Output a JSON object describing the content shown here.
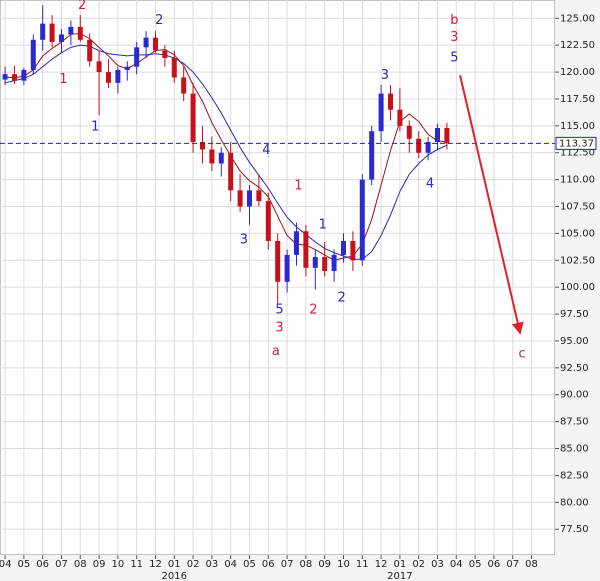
{
  "chart_data": {
    "type": "candlestick",
    "x": [
      0,
      0.5,
      1,
      1.5,
      2,
      2.5,
      3,
      3.5,
      4,
      4.5,
      5,
      5.5,
      6,
      6.5,
      7,
      7.5,
      8,
      8.5,
      9,
      9.5,
      10,
      10.5,
      11,
      11.5,
      12,
      12.5,
      13,
      13.5,
      14,
      14.5,
      15,
      15.5,
      16,
      16.5,
      17,
      17.5,
      18,
      18.5,
      19,
      19.5,
      20,
      20.5,
      21,
      21.5,
      22,
      22.5,
      23,
      23.5
    ],
    "open": [
      119.3,
      119.8,
      119.2,
      120.2,
      123.0,
      124.5,
      122.8,
      123.5,
      124.2,
      123.0,
      121.0,
      120.0,
      119.0,
      120.2,
      120.5,
      122.3,
      123.2,
      122.0,
      121.3,
      119.5,
      118.0,
      113.5,
      112.8,
      111.5,
      112.5,
      109.0,
      107.5,
      109.0,
      108.0,
      104.3,
      100.5,
      103.0,
      105.2,
      101.8,
      102.8,
      101.5,
      103.0,
      104.3,
      102.5,
      110.0,
      114.5,
      118.0,
      116.5,
      115.0,
      113.8,
      112.5,
      113.5,
      114.8
    ],
    "high": [
      120.5,
      120.6,
      120.4,
      123.5,
      126.2,
      125.3,
      124.0,
      124.8,
      125.3,
      123.6,
      122.0,
      121.2,
      120.5,
      121.0,
      122.8,
      123.8,
      123.8,
      122.5,
      122.0,
      120.5,
      119.0,
      115.0,
      114.0,
      113.0,
      113.5,
      110.5,
      109.5,
      110.5,
      108.8,
      105.0,
      103.5,
      106.0,
      105.8,
      103.5,
      104.2,
      103.5,
      105.0,
      105.2,
      110.5,
      115.0,
      118.8,
      118.8,
      118.5,
      115.5,
      114.5,
      114.0,
      115.2,
      115.3
    ],
    "low": [
      118.8,
      118.9,
      118.8,
      119.8,
      122.0,
      122.3,
      121.8,
      122.5,
      122.8,
      120.5,
      116.0,
      118.5,
      118.0,
      119.2,
      119.8,
      121.3,
      121.8,
      120.5,
      119.0,
      117.3,
      112.5,
      111.5,
      110.8,
      110.3,
      108.0,
      107.0,
      105.8,
      107.5,
      103.5,
      98.5,
      99.5,
      102.0,
      101.0,
      99.8,
      101.0,
      100.5,
      102.3,
      101.5,
      102.0,
      109.5,
      113.5,
      115.5,
      114.5,
      112.5,
      112.0,
      111.8,
      112.8,
      112.8
    ],
    "close": [
      119.8,
      119.2,
      120.2,
      123.0,
      124.5,
      122.8,
      123.5,
      124.2,
      123.0,
      121.0,
      120.0,
      119.0,
      120.2,
      120.5,
      122.3,
      123.2,
      122.0,
      121.3,
      119.5,
      118.0,
      113.5,
      112.8,
      111.5,
      112.5,
      109.0,
      107.5,
      109.0,
      108.0,
      104.3,
      100.5,
      103.0,
      105.2,
      101.8,
      102.8,
      101.5,
      103.0,
      104.3,
      102.5,
      110.0,
      114.5,
      118.0,
      116.5,
      115.0,
      113.8,
      112.5,
      113.5,
      114.8,
      113.37
    ],
    "up_color": "#2a2ad0",
    "down_color": "#c8101a",
    "ma": [
      {
        "color": "#a01018",
        "values": [
          119.5,
          119.5,
          119.6,
          120.2,
          121.5,
          122.2,
          122.8,
          123.5,
          123.6,
          123.1,
          122.3,
          121.5,
          120.6,
          120.3,
          120.8,
          121.4,
          122.0,
          122.1,
          121.6,
          120.6,
          118.8,
          117.3,
          115.3,
          113.7,
          112.2,
          110.8,
          109.9,
          109.3,
          108.4,
          106.6,
          104.8,
          104.0,
          103.9,
          103.5,
          103.0,
          102.5,
          102.7,
          102.9,
          104.0,
          106.3,
          109.5,
          112.7,
          115.4,
          116.1,
          115.4,
          114.2,
          113.6,
          113.5
        ]
      },
      {
        "color": "#2a2ab8",
        "values": [
          119.0,
          119.2,
          119.4,
          119.8,
          120.5,
          121.2,
          121.8,
          122.3,
          122.5,
          122.4,
          122.0,
          121.7,
          121.6,
          121.5,
          121.6,
          121.6,
          121.7,
          121.6,
          121.3,
          120.8,
          120.0,
          118.9,
          117.6,
          116.2,
          114.6,
          113.0,
          111.6,
          110.4,
          109.2,
          107.8,
          106.5,
          105.6,
          104.9,
          104.2,
          103.6,
          103.2,
          102.9,
          102.6,
          102.6,
          103.3,
          104.8,
          106.7,
          108.9,
          110.5,
          111.5,
          112.3,
          112.8,
          113.2
        ]
      }
    ],
    "price_line": 113.37,
    "price_line_color": "#2020c0",
    "xlim": [
      -0.27,
      29.25
    ],
    "xticks": [
      {
        "value": 0,
        "label": "04"
      },
      {
        "value": 1,
        "label": "05"
      },
      {
        "value": 2,
        "label": "06"
      },
      {
        "value": 3,
        "label": "07"
      },
      {
        "value": 4,
        "label": "08"
      },
      {
        "value": 5,
        "label": "09"
      },
      {
        "value": 6,
        "label": "10"
      },
      {
        "value": 7,
        "label": "11"
      },
      {
        "value": 8,
        "label": "12"
      },
      {
        "value": 9,
        "label": "01"
      },
      {
        "value": 10,
        "label": "02"
      },
      {
        "value": 11,
        "label": "03"
      },
      {
        "value": 12,
        "label": "04"
      },
      {
        "value": 13,
        "label": "05"
      },
      {
        "value": 14,
        "label": "06"
      },
      {
        "value": 15,
        "label": "07"
      },
      {
        "value": 16,
        "label": "08"
      },
      {
        "value": 17,
        "label": "09"
      },
      {
        "value": 18,
        "label": "10"
      },
      {
        "value": 19,
        "label": "11"
      },
      {
        "value": 20,
        "label": "12"
      },
      {
        "value": 21,
        "label": "01"
      },
      {
        "value": 22,
        "label": "02"
      },
      {
        "value": 23,
        "label": "03"
      },
      {
        "value": 24,
        "label": "04"
      },
      {
        "value": 25,
        "label": "05"
      },
      {
        "value": 26,
        "label": "06"
      },
      {
        "value": 27,
        "label": "07"
      },
      {
        "value": 28,
        "label": "08"
      }
    ],
    "year_labels": [
      {
        "value": 9,
        "label": "2016"
      },
      {
        "value": 21,
        "label": "2017"
      }
    ],
    "ylim": [
      75.1,
      126.7
    ],
    "yticks": [
      {
        "value": 77.5,
        "label": "77.50"
      },
      {
        "value": 80,
        "label": "80.00"
      },
      {
        "value": 82.5,
        "label": "82.50"
      },
      {
        "value": 85,
        "label": "85.00"
      },
      {
        "value": 87.5,
        "label": "87.50"
      },
      {
        "value": 90,
        "label": "90.00"
      },
      {
        "value": 92.5,
        "label": "92.50"
      },
      {
        "value": 95,
        "label": "95.00"
      },
      {
        "value": 97.5,
        "label": "97.50"
      },
      {
        "value": 100,
        "label": "100.00"
      },
      {
        "value": 102.5,
        "label": "102.50"
      },
      {
        "value": 105,
        "label": "105.00"
      },
      {
        "value": 107.5,
        "label": "107.50"
      },
      {
        "value": 110,
        "label": "110.00"
      },
      {
        "value": 112.5,
        "label": "112.50"
      },
      {
        "value": 115,
        "label": "115.00"
      },
      {
        "value": 117.5,
        "label": "117.50"
      },
      {
        "value": 120,
        "label": "120.00"
      },
      {
        "value": 122.5,
        "label": "122.50"
      },
      {
        "value": 125,
        "label": "125.00"
      }
    ],
    "grid": true,
    "annotations": [
      {
        "text": "2",
        "x": 4.1,
        "y": 126.2,
        "color": "#d0203a"
      },
      {
        "text": "1",
        "x": 3.1,
        "y": 119.3,
        "color": "#d0203a"
      },
      {
        "text": "1",
        "x": 4.8,
        "y": 114.9,
        "color": "#2a2ab8"
      },
      {
        "text": "2",
        "x": 8.2,
        "y": 124.8,
        "color": "#2a2ab8"
      },
      {
        "text": "4",
        "x": 13.9,
        "y": 112.7,
        "color": "#2a2ab8"
      },
      {
        "text": "3",
        "x": 12.7,
        "y": 104.4,
        "color": "#2a2ab8"
      },
      {
        "text": "1",
        "x": 15.6,
        "y": 109.4,
        "color": "#d0203a"
      },
      {
        "text": "5",
        "x": 14.6,
        "y": 97.9,
        "color": "#2a2ab8"
      },
      {
        "text": "3",
        "x": 14.6,
        "y": 96.2,
        "color": "#d0203a"
      },
      {
        "text": "a",
        "x": 14.4,
        "y": 94.0,
        "color": "#d0203a"
      },
      {
        "text": "2",
        "x": 16.4,
        "y": 97.9,
        "color": "#d0203a"
      },
      {
        "text": "1",
        "x": 16.9,
        "y": 105.8,
        "color": "#2a2ab8"
      },
      {
        "text": "2",
        "x": 17.9,
        "y": 99.0,
        "color": "#2a2ab8"
      },
      {
        "text": "3",
        "x": 20.2,
        "y": 119.7,
        "color": "#2a2ab8"
      },
      {
        "text": "4",
        "x": 22.6,
        "y": 109.6,
        "color": "#2a2ab8"
      },
      {
        "text": "b",
        "x": 23.9,
        "y": 124.8,
        "color": "#d0203a"
      },
      {
        "text": "3",
        "x": 23.9,
        "y": 123.2,
        "color": "#d0203a"
      },
      {
        "text": "5",
        "x": 23.9,
        "y": 121.3,
        "color": "#2a2ab8"
      },
      {
        "text": "c",
        "x": 27.5,
        "y": 93.8,
        "color": "#d0203a"
      }
    ],
    "arrow": {
      "x": [
        24.2,
        27.4
      ],
      "y": [
        119.7,
        95.7
      ],
      "color": "#e0202a"
    }
  }
}
